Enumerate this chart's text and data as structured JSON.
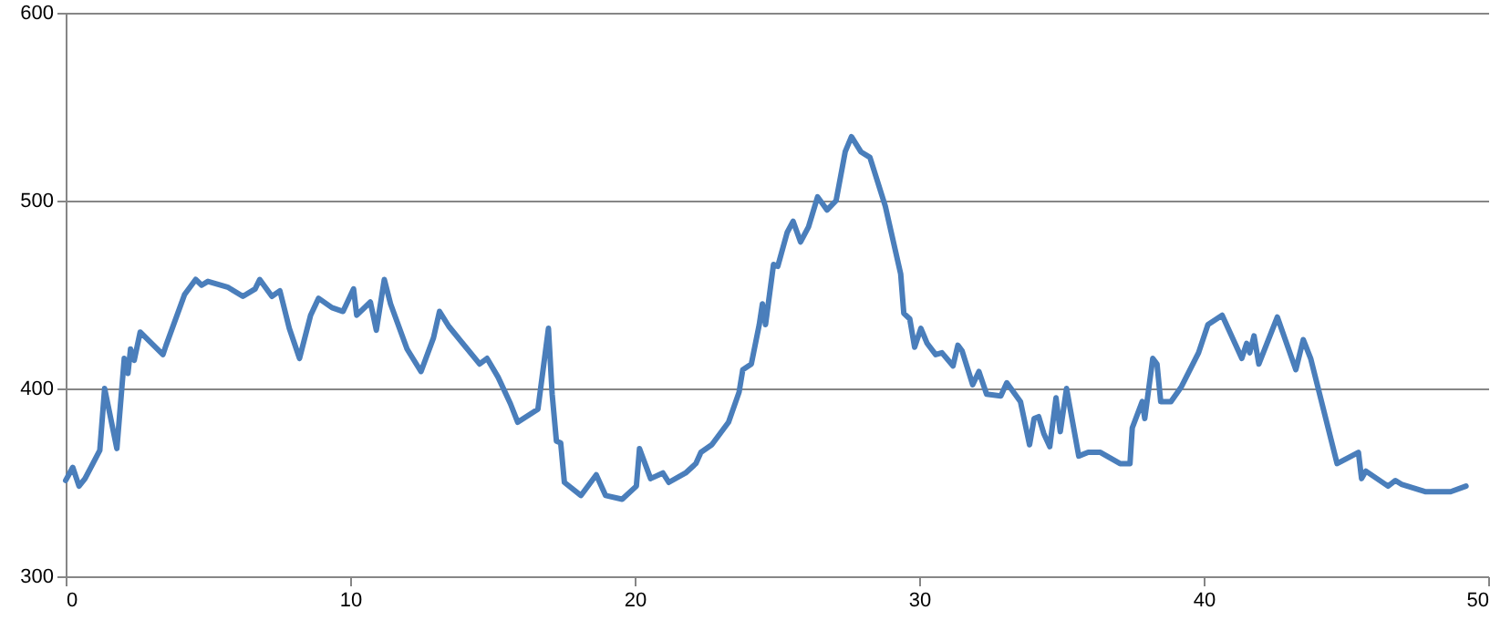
{
  "chart_data": {
    "type": "line",
    "grid": "y",
    "marker": "none",
    "line_style": "solid",
    "xlim": [
      0,
      50
    ],
    "xticks": [
      0,
      10,
      20,
      30,
      40,
      50
    ],
    "ylim": [
      300,
      600
    ],
    "yticks": [
      300,
      400,
      500,
      600
    ],
    "series": [
      {
        "color": "#4a7ebb",
        "x": [
          0,
          0.25,
          0.47,
          0.68,
          1.2,
          1.37,
          1.8,
          2.06,
          2.19,
          2.28,
          2.41,
          2.62,
          3.42,
          3.53,
          4.18,
          4.57,
          4.78,
          5.0,
          5.69,
          6.23,
          6.66,
          6.82,
          7.25,
          7.53,
          7.86,
          8.22,
          8.61,
          8.89,
          9.36,
          9.75,
          10.12,
          10.23,
          10.71,
          10.92,
          11.2,
          11.42,
          12.0,
          12.49,
          12.93,
          13.14,
          13.47,
          14.55,
          14.81,
          15.2,
          15.63,
          15.89,
          16.6,
          16.97,
          17.1,
          17.25,
          17.4,
          17.53,
          18.11,
          18.65,
          18.98,
          19.56,
          20.06,
          20.17,
          20.56,
          20.99,
          21.2,
          21.79,
          22.15,
          22.33,
          22.71,
          23.3,
          23.67,
          23.8,
          24.1,
          24.38,
          24.49,
          24.6,
          24.88,
          25.03,
          25.36,
          25.57,
          25.83,
          26.11,
          26.43,
          26.76,
          27.08,
          27.4,
          27.62,
          27.95,
          28.27,
          28.81,
          29.35,
          29.46,
          29.67,
          29.84,
          30.06,
          30.28,
          30.58,
          30.8,
          31.19,
          31.36,
          31.51,
          31.88,
          32.1,
          32.37,
          32.87,
          33.08,
          33.56,
          33.88,
          34.04,
          34.2,
          34.38,
          34.59,
          34.81,
          34.96,
          35.18,
          35.61,
          35.94,
          36.37,
          37.06,
          37.41,
          37.49,
          37.84,
          37.93,
          38.21,
          38.36,
          38.49,
          38.85,
          39.22,
          39.82,
          40.15,
          40.65,
          41.34,
          41.51,
          41.62,
          41.77,
          41.94,
          42.59,
          43.24,
          43.5,
          43.76,
          44.69,
          45.44,
          45.55,
          45.7,
          46.48,
          46.74,
          46.95,
          47.81,
          48.68,
          49.22
        ],
        "values": [
          351,
          358,
          348,
          352,
          367,
          400,
          368,
          416,
          408,
          421,
          415,
          430,
          418,
          423,
          450,
          458,
          455,
          457,
          454,
          449,
          453,
          458,
          449,
          452,
          432,
          416,
          439,
          448,
          443,
          441,
          453,
          439,
          446,
          431,
          458,
          445,
          421,
          409,
          427,
          441,
          433,
          413,
          416,
          406,
          392,
          382,
          389,
          432,
          397,
          372,
          371,
          350,
          343,
          354,
          343,
          341,
          348,
          368,
          352,
          355,
          350,
          355,
          360,
          366,
          370,
          382,
          398,
          410,
          413,
          434,
          445,
          434,
          466,
          465,
          483,
          489,
          478,
          486,
          502,
          495,
          500,
          526,
          534,
          526,
          523,
          497,
          461,
          440,
          437,
          422,
          432,
          424,
          418,
          419,
          412,
          423,
          420,
          402,
          409,
          397,
          396,
          403,
          393,
          370,
          384,
          385,
          376,
          369,
          395,
          377,
          400,
          364,
          366,
          366,
          360,
          360,
          379,
          393,
          384,
          416,
          413,
          393,
          393,
          401,
          419,
          434,
          439,
          416,
          424,
          419,
          428,
          413,
          438,
          410,
          426,
          416,
          360,
          366,
          352,
          356,
          348,
          351,
          349,
          345,
          345,
          348
        ]
      }
    ]
  }
}
